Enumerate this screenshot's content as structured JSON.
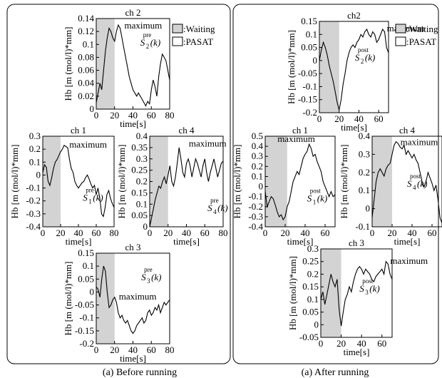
{
  "captions": {
    "left": "(a) Before running",
    "right": "(a) After running"
  },
  "legend": {
    "waiting": ":Waiting",
    "pasat": ":PASAT",
    "waiting_color": "#d3d3d3",
    "pasat_color": "#ffffff"
  },
  "chart_data": [
    {
      "type": "line",
      "panel": "before",
      "title": "ch 2",
      "ylabel": "Hb [m (mol/l)*mm]",
      "xlabel": "time[s]",
      "xlim": [
        0,
        80
      ],
      "ylim": [
        0,
        0.14
      ],
      "xticks": [
        0,
        20,
        40,
        60,
        80
      ],
      "yticks": [
        0,
        0.02,
        0.04,
        0.06,
        0.08,
        0.1,
        0.12,
        0.14
      ],
      "shade": [
        0,
        20
      ],
      "annotations": [
        {
          "text": "maximum",
          "x": 26,
          "y": 0.13
        }
      ],
      "label": {
        "sup": "pre",
        "main": "S",
        "sub": "2",
        "arg": "(k)",
        "x": 48,
        "y": 0.098
      },
      "x": [
        0,
        2,
        4,
        6,
        8,
        10,
        12,
        14,
        16,
        18,
        20,
        22,
        24,
        26,
        28,
        30,
        32,
        34,
        36,
        38,
        40,
        42,
        44,
        46,
        48,
        50,
        52,
        54,
        56,
        58,
        60,
        62,
        64,
        66,
        68,
        70,
        72,
        74,
        76,
        78,
        80
      ],
      "y": [
        0.01,
        0.025,
        0.04,
        0.03,
        0.06,
        0.09,
        0.11,
        0.125,
        0.12,
        0.11,
        0.105,
        0.12,
        0.13,
        0.125,
        0.11,
        0.095,
        0.08,
        0.065,
        0.05,
        0.04,
        0.03,
        0.025,
        0.02,
        0.025,
        0.02,
        0.015,
        0.01,
        0.005,
        0.012,
        0.008,
        0.03,
        0.045,
        0.035,
        0.02,
        0.05,
        0.07,
        0.085,
        0.08,
        0.075,
        0.06,
        0.045
      ]
    },
    {
      "type": "line",
      "panel": "before",
      "title": "ch 1",
      "ylabel": "Hb [m (mol/l)*mm]",
      "xlabel": "time[s]",
      "xlim": [
        0,
        80
      ],
      "ylim": [
        -0.4,
        0.3
      ],
      "xticks": [
        0,
        20,
        40,
        60,
        80
      ],
      "yticks": [
        -0.4,
        -0.3,
        -0.2,
        -0.1,
        0,
        0.1,
        0.2,
        0.3
      ],
      "shade": [
        0,
        20
      ],
      "annotations": [
        {
          "text": "maximum",
          "x": 25,
          "y": 0.24
        }
      ],
      "label": {
        "sup": "pre",
        "main": "S",
        "sub": "1",
        "arg": "(k)",
        "x": 45,
        "y": -0.2
      },
      "x": [
        0,
        2,
        4,
        6,
        8,
        10,
        12,
        14,
        16,
        18,
        20,
        22,
        24,
        26,
        28,
        30,
        32,
        34,
        36,
        38,
        40,
        42,
        44,
        46,
        48,
        50,
        52,
        54,
        56,
        58,
        60,
        62,
        64,
        66,
        68,
        70,
        72,
        74,
        76,
        78,
        80
      ],
      "y": [
        0.02,
        0.08,
        0.06,
        -0.05,
        -0.08,
        -0.02,
        0.05,
        0.1,
        0.12,
        0.15,
        0.18,
        0.2,
        0.23,
        0.22,
        0.21,
        0.12,
        0.05,
        0.02,
        -0.05,
        -0.08,
        -0.1,
        -0.08,
        -0.06,
        -0.05,
        -0.02,
        0.0,
        -0.03,
        -0.07,
        -0.1,
        -0.08,
        -0.15,
        -0.1,
        -0.18,
        -0.3,
        -0.32,
        -0.25,
        -0.15,
        -0.12,
        -0.18,
        -0.22,
        -0.25
      ]
    },
    {
      "type": "line",
      "panel": "before",
      "title": "ch 4",
      "ylabel": "Hb [m (mol/l)*mm]",
      "xlabel": "time[s]",
      "xlim": [
        0,
        80
      ],
      "ylim": [
        0,
        0.4
      ],
      "xticks": [
        0,
        20,
        40,
        60,
        80
      ],
      "yticks": [
        0,
        0.05,
        0.1,
        0.15,
        0.2,
        0.25,
        0.3,
        0.35,
        0.4
      ],
      "shade": [
        0,
        20
      ],
      "annotations": [
        {
          "text": "maximum",
          "x": 38,
          "y": 0.37
        }
      ],
      "label": {
        "sup": "pre",
        "main": "S",
        "sub": "4",
        "arg": "(k)",
        "x": 63,
        "y": 0.07
      },
      "x": [
        0,
        2,
        4,
        6,
        8,
        10,
        12,
        14,
        16,
        18,
        20,
        22,
        24,
        26,
        28,
        30,
        32,
        34,
        36,
        38,
        40,
        42,
        44,
        46,
        48,
        50,
        52,
        54,
        56,
        58,
        60,
        62,
        64,
        66,
        68,
        70,
        72,
        74,
        76,
        78,
        80
      ],
      "y": [
        0.0,
        0.04,
        0.08,
        0.12,
        0.15,
        0.18,
        0.17,
        0.2,
        0.22,
        0.19,
        0.23,
        0.27,
        0.2,
        0.18,
        0.22,
        0.28,
        0.35,
        0.3,
        0.24,
        0.22,
        0.28,
        0.3,
        0.27,
        0.22,
        0.26,
        0.3,
        0.28,
        0.25,
        0.22,
        0.27,
        0.3,
        0.24,
        0.2,
        0.24,
        0.27,
        0.3,
        0.26,
        0.22,
        0.25,
        0.28,
        0.29
      ]
    },
    {
      "type": "line",
      "panel": "before",
      "title": "ch 3",
      "ylabel": "Hb [m (mol/l)*mm]",
      "xlabel": "time[s]",
      "xlim": [
        0,
        80
      ],
      "ylim": [
        -0.2,
        0.15
      ],
      "xticks": [
        0,
        20,
        40,
        60,
        80
      ],
      "yticks": [
        -0.2,
        -0.15,
        -0.1,
        -0.05,
        0,
        0.05,
        0.1,
        0.15
      ],
      "shade": [
        0,
        20
      ],
      "annotations": [
        {
          "text": "maximum",
          "x": 20,
          "y": -0.015
        }
      ],
      "label": {
        "sup": "pre",
        "main": "S",
        "sub": "3",
        "arg": "(k)",
        "x": 49,
        "y": 0.045
      },
      "x": [
        0,
        2,
        4,
        6,
        8,
        10,
        12,
        14,
        16,
        18,
        20,
        22,
        24,
        26,
        28,
        30,
        32,
        34,
        36,
        38,
        40,
        42,
        44,
        46,
        48,
        50,
        52,
        54,
        56,
        58,
        60,
        62,
        64,
        66,
        68,
        70,
        72,
        74,
        76,
        78,
        80
      ],
      "y": [
        0.02,
        0.01,
        -0.02,
        0.05,
        0.1,
        0.08,
        0.0,
        -0.06,
        -0.05,
        -0.03,
        -0.02,
        -0.04,
        -0.08,
        -0.1,
        -0.09,
        -0.11,
        -0.12,
        -0.11,
        -0.13,
        -0.15,
        -0.16,
        -0.15,
        -0.13,
        -0.12,
        -0.11,
        -0.1,
        -0.12,
        -0.11,
        -0.08,
        -0.07,
        -0.09,
        -0.08,
        -0.06,
        -0.07,
        -0.05,
        -0.08,
        -0.06,
        -0.04,
        -0.05,
        -0.04,
        -0.03
      ]
    },
    {
      "type": "line",
      "panel": "after",
      "title": "ch2",
      "ylabel": "Hb [m (mol/l)*mm]",
      "xlabel": "time[s]",
      "xlim": [
        0,
        70
      ],
      "ylim": [
        -0.2,
        0.15
      ],
      "xticks": [
        0,
        20,
        40,
        60
      ],
      "yticks": [
        -0.2,
        -0.15,
        -0.1,
        -0.05,
        0,
        0.05,
        0.1,
        0.15
      ],
      "shade": [
        0,
        20
      ],
      "annotations": [
        {
          "text": "maximum",
          "x": 64,
          "y": 0.125
        }
      ],
      "label": {
        "sup": "post",
        "main": "S",
        "sub": "2",
        "arg": "(k)",
        "x": 36,
        "y": 0.0
      },
      "x": [
        0,
        2,
        4,
        6,
        8,
        10,
        12,
        14,
        16,
        18,
        20,
        22,
        24,
        26,
        28,
        30,
        32,
        34,
        36,
        38,
        40,
        42,
        44,
        46,
        48,
        50,
        52,
        54,
        56,
        58,
        60,
        62,
        64,
        66,
        68,
        70
      ],
      "y": [
        0.0,
        0.04,
        0.07,
        0.05,
        0.02,
        -0.02,
        -0.05,
        -0.08,
        -0.12,
        -0.16,
        -0.19,
        -0.15,
        -0.09,
        -0.05,
        0.0,
        0.03,
        0.05,
        0.06,
        0.05,
        0.07,
        0.08,
        0.1,
        0.09,
        0.11,
        0.12,
        0.1,
        0.09,
        0.11,
        0.1,
        0.07,
        0.08,
        0.1,
        0.12,
        0.11,
        0.05,
        0.03
      ]
    },
    {
      "type": "line",
      "panel": "after",
      "title": "ch 1",
      "ylabel": "Hb [m (mol/l)*mm]",
      "xlabel": "time[s]",
      "xlim": [
        0,
        70
      ],
      "ylim": [
        -0.4,
        0.5
      ],
      "xticks": [
        0,
        20,
        40,
        60
      ],
      "yticks": [
        -0.4,
        -0.3,
        -0.2,
        -0.1,
        0,
        0.1,
        0.2,
        0.3,
        0.4,
        0.5
      ],
      "shade": [
        0,
        22
      ],
      "annotations": [
        {
          "text": "maximum",
          "x": 8,
          "y": 0.48
        }
      ],
      "label": {
        "sup": "post",
        "main": "S",
        "sub": "1",
        "arg": "(k)",
        "x": 42,
        "y": -0.15
      },
      "x": [
        0,
        2,
        4,
        6,
        8,
        10,
        12,
        14,
        16,
        18,
        20,
        22,
        24,
        26,
        28,
        30,
        32,
        34,
        36,
        38,
        40,
        42,
        44,
        46,
        48,
        50,
        52,
        54,
        56,
        58,
        60,
        62,
        64,
        66,
        68,
        70
      ],
      "y": [
        -0.05,
        -0.2,
        -0.15,
        -0.1,
        -0.12,
        -0.18,
        -0.25,
        -0.3,
        -0.28,
        -0.33,
        -0.3,
        -0.2,
        -0.15,
        -0.05,
        0.05,
        0.1,
        0.15,
        0.12,
        0.2,
        0.28,
        0.32,
        0.35,
        0.42,
        0.38,
        0.3,
        0.32,
        0.25,
        0.2,
        0.15,
        0.05,
        0.0,
        -0.05,
        -0.1,
        -0.05,
        -0.1,
        -0.08
      ]
    },
    {
      "type": "line",
      "panel": "after",
      "title": "ch 4",
      "ylabel": "Hb [m (mol/l)*mm]",
      "xlabel": "time[s]",
      "xlim": [
        0,
        70
      ],
      "ylim": [
        -0.1,
        0.4
      ],
      "xticks": [
        0,
        20,
        40,
        60
      ],
      "yticks": [
        -0.1,
        0,
        0.1,
        0.2,
        0.3,
        0.4
      ],
      "shade": [
        0,
        20
      ],
      "annotations": [
        {
          "text": "maximum",
          "x": 24,
          "y": 0.37
        }
      ],
      "label": {
        "sup": "post",
        "main": "S",
        "sub": "4",
        "arg": "(k)",
        "x": 35,
        "y": 0.12
      },
      "x": [
        0,
        2,
        4,
        6,
        8,
        10,
        12,
        14,
        16,
        18,
        20,
        22,
        24,
        26,
        28,
        30,
        32,
        34,
        36,
        38,
        40,
        42,
        44,
        46,
        48,
        50,
        52,
        54,
        56,
        58,
        60,
        62,
        64,
        66,
        68,
        70
      ],
      "y": [
        -0.05,
        0.05,
        0.15,
        0.2,
        0.22,
        0.2,
        0.18,
        0.22,
        0.24,
        0.25,
        0.3,
        0.35,
        0.37,
        0.36,
        0.34,
        0.33,
        0.35,
        0.3,
        0.32,
        0.3,
        0.28,
        0.3,
        0.27,
        0.25,
        0.2,
        0.15,
        0.12,
        0.15,
        0.2,
        0.17,
        0.14,
        0.1,
        0.13,
        0.05,
        -0.05,
        -0.08
      ]
    },
    {
      "type": "line",
      "panel": "after",
      "title": "ch 3",
      "ylabel": "Hb [m (mol/l)*mm]",
      "xlabel": "time[s]",
      "xlim": [
        0,
        70
      ],
      "ylim": [
        -0.05,
        0.3
      ],
      "xticks": [
        0,
        20,
        40,
        60
      ],
      "yticks": [
        -0.05,
        0,
        0.05,
        0.1,
        0.15,
        0.2,
        0.25,
        0.3
      ],
      "shade": [
        0,
        20
      ],
      "annotations": [
        {
          "text": "maximum",
          "x": 64,
          "y": 0.255
        }
      ],
      "label": {
        "sup": "post",
        "main": "S",
        "sub": "3",
        "arg": "(k)",
        "x": 38,
        "y": 0.13
      },
      "x": [
        0,
        2,
        4,
        6,
        8,
        10,
        12,
        14,
        16,
        18,
        20,
        22,
        24,
        26,
        28,
        30,
        32,
        34,
        36,
        38,
        40,
        42,
        44,
        46,
        48,
        50,
        52,
        54,
        56,
        58,
        60,
        62,
        64,
        66,
        68,
        70
      ],
      "y": [
        0.1,
        0.13,
        0.08,
        0.12,
        0.16,
        0.2,
        0.17,
        0.15,
        0.18,
        0.06,
        -0.005,
        0.05,
        0.1,
        0.12,
        0.15,
        0.13,
        0.17,
        0.2,
        0.22,
        0.23,
        0.22,
        0.2,
        0.22,
        0.21,
        0.2,
        0.18,
        0.17,
        0.19,
        0.2,
        0.21,
        0.22,
        0.2,
        0.25,
        0.24,
        0.2,
        0.18
      ]
    }
  ]
}
